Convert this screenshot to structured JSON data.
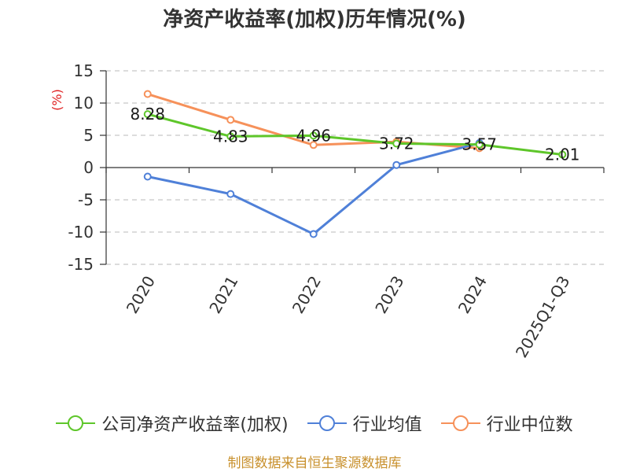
{
  "colors": {
    "company": "#5ec62a",
    "industry_avg": "#4f80d8",
    "industry_median": "#f6915a",
    "source": "#c8902c",
    "unit": "#e02020"
  },
  "chart_data": {
    "type": "line",
    "title": "净资产收益率(加权)历年情况(%)",
    "unit_label": "(%)",
    "categories": [
      "2020",
      "2021",
      "2022",
      "2023",
      "2024",
      "2025Q1-Q3"
    ],
    "ylim": [
      -15,
      15
    ],
    "yticks": [
      15,
      10,
      5,
      0,
      -5,
      -10,
      -15
    ],
    "ytick_labels": [
      "15",
      "10",
      "5",
      "0",
      "-5",
      "-10",
      "-15"
    ],
    "grid": true,
    "legend_position": "bottom",
    "series": [
      {
        "name": "公司净资产收益率(加权)",
        "key": "company",
        "values": [
          8.28,
          4.83,
          4.96,
          3.72,
          3.57,
          2.01
        ],
        "labels": [
          "8.28",
          "4.83",
          "4.96",
          "3.72",
          "3.57",
          "2.01"
        ]
      },
      {
        "name": "行业均值",
        "key": "industry_avg",
        "values": [
          -1.4,
          -4.1,
          -10.3,
          0.4,
          3.8,
          null
        ]
      },
      {
        "name": "行业中位数",
        "key": "industry_median",
        "values": [
          11.4,
          7.4,
          3.5,
          4.0,
          3.0,
          null
        ]
      }
    ]
  },
  "footer": {
    "source": "制图数据来自恒生聚源数据库"
  }
}
